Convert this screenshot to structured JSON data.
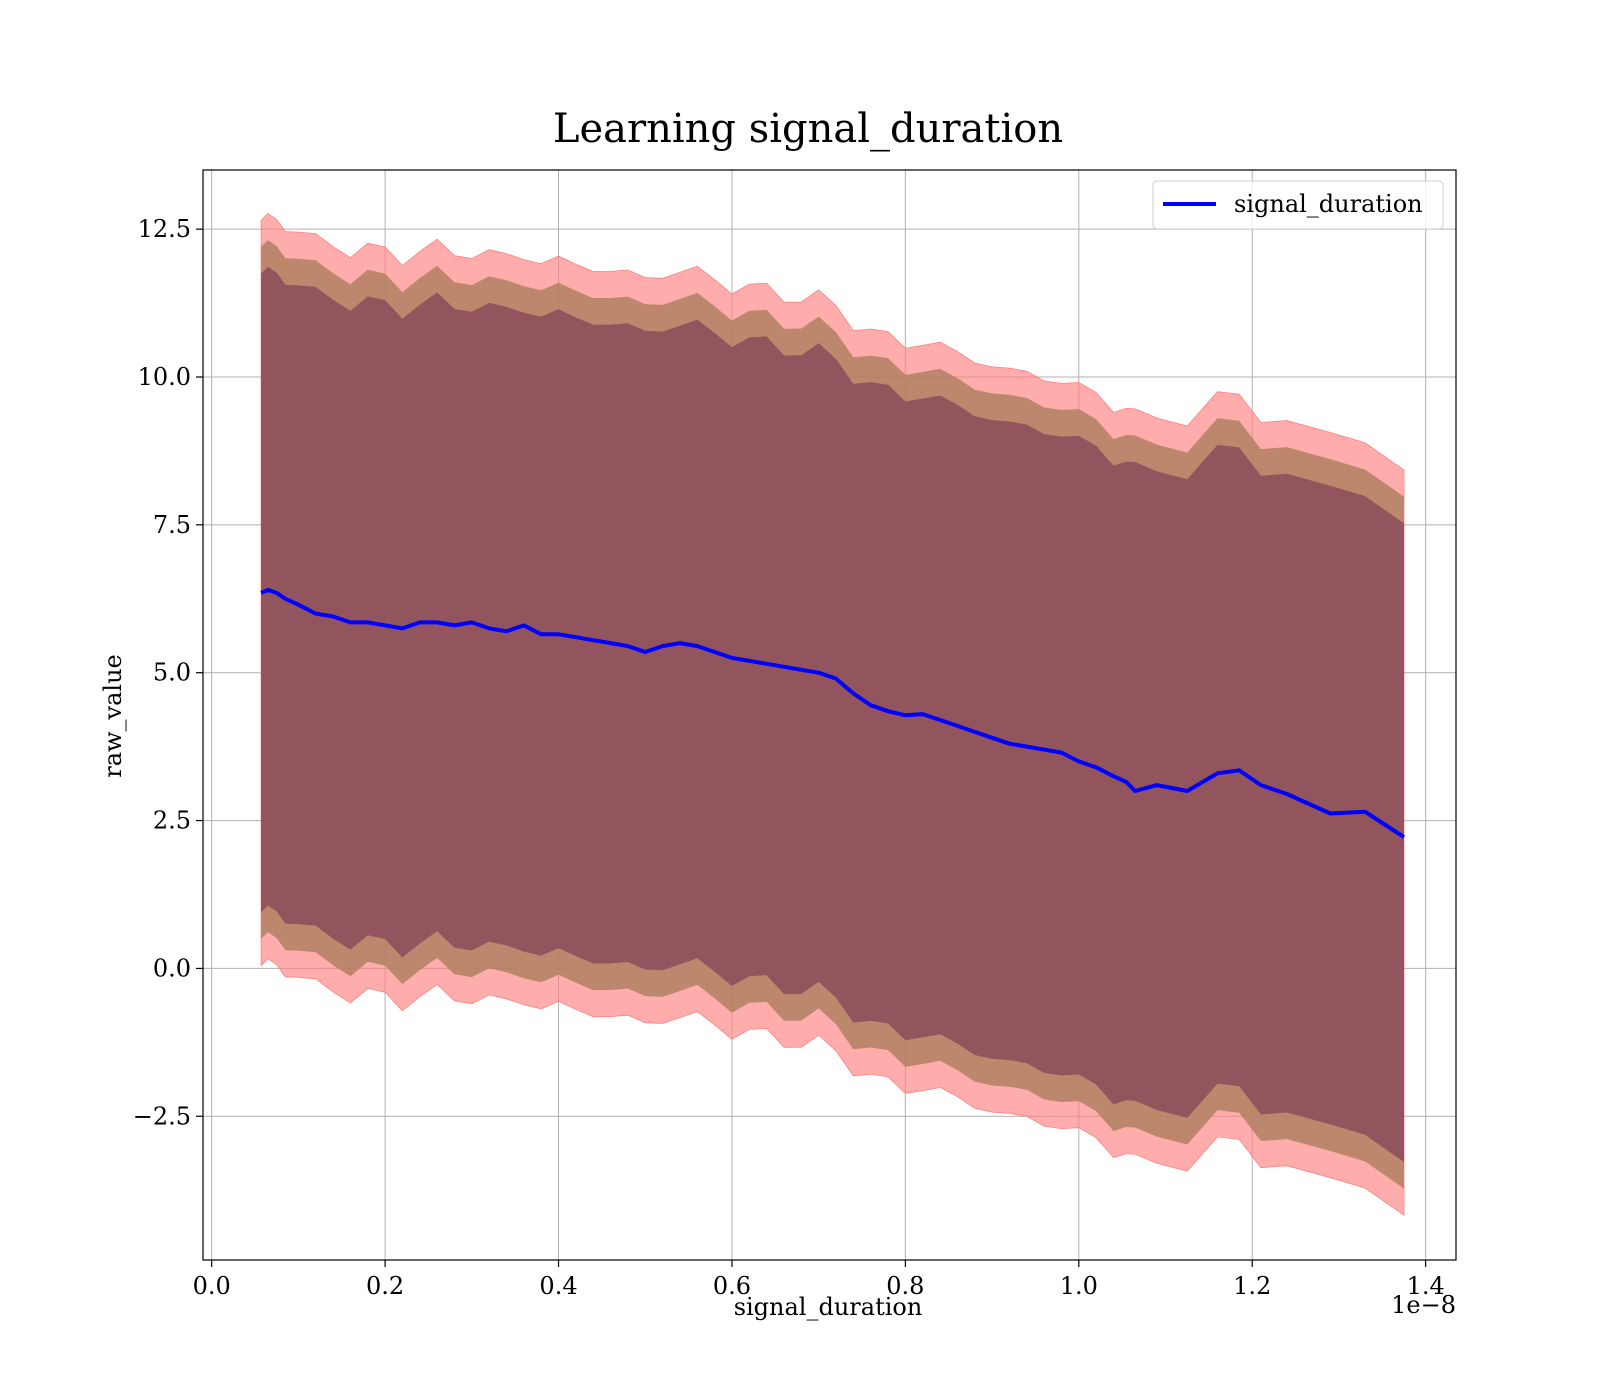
{
  "chart_data": {
    "type": "line",
    "title": "Learning signal_duration",
    "xlabel": "signal_duration",
    "ylabel": "raw_value",
    "x_offset_text": "1e−8",
    "xlim": [
      -0.01,
      1.435
    ],
    "ylim": [
      -4.93,
      13.5
    ],
    "x_ticks": [
      0.0,
      0.2,
      0.4,
      0.6,
      0.8,
      1.0,
      1.2,
      1.4
    ],
    "x_tick_labels": [
      "0.0",
      "0.2",
      "0.4",
      "0.6",
      "0.8",
      "1.0",
      "1.2",
      "1.4"
    ],
    "y_ticks": [
      -2.5,
      0.0,
      2.5,
      5.0,
      7.5,
      10.0,
      12.5
    ],
    "y_tick_labels": [
      "−2.5",
      "0.0",
      "2.5",
      "5.0",
      "7.5",
      "10.0",
      "12.5"
    ],
    "grid": true,
    "legend": {
      "position": "upper right",
      "entries": [
        "signal_duration"
      ]
    },
    "colors": {
      "line": "#0000ff",
      "band_outer": "#ff8080",
      "band_mid": "#b08060",
      "band_inner": "#8b4c5c"
    },
    "band_half_widths": {
      "outer": 6.3,
      "mid": 5.85,
      "inner": 5.4
    },
    "series": [
      {
        "name": "signal_duration",
        "x": [
          0.057,
          0.065,
          0.075,
          0.085,
          0.1,
          0.12,
          0.14,
          0.16,
          0.18,
          0.2,
          0.22,
          0.24,
          0.26,
          0.28,
          0.3,
          0.32,
          0.34,
          0.36,
          0.38,
          0.4,
          0.42,
          0.44,
          0.46,
          0.48,
          0.5,
          0.52,
          0.54,
          0.56,
          0.58,
          0.6,
          0.62,
          0.64,
          0.66,
          0.68,
          0.7,
          0.72,
          0.74,
          0.76,
          0.78,
          0.8,
          0.82,
          0.84,
          0.86,
          0.88,
          0.9,
          0.92,
          0.94,
          0.96,
          0.98,
          1.0,
          1.02,
          1.04,
          1.055,
          1.065,
          1.09,
          1.125,
          1.16,
          1.185,
          1.21,
          1.24,
          1.29,
          1.33,
          1.375
        ],
        "y": [
          6.35,
          6.4,
          6.35,
          6.25,
          6.15,
          6.0,
          5.95,
          5.85,
          5.85,
          5.8,
          5.75,
          5.85,
          5.85,
          5.8,
          5.85,
          5.75,
          5.7,
          5.8,
          5.65,
          5.65,
          5.6,
          5.55,
          5.5,
          5.45,
          5.35,
          5.45,
          5.5,
          5.45,
          5.35,
          5.25,
          5.2,
          5.15,
          5.1,
          5.05,
          5.0,
          4.9,
          4.65,
          4.45,
          4.35,
          4.28,
          4.3,
          4.2,
          4.1,
          4.0,
          3.9,
          3.8,
          3.75,
          3.7,
          3.65,
          3.5,
          3.4,
          3.25,
          3.15,
          3.0,
          3.1,
          3.0,
          3.3,
          3.35,
          3.1,
          2.95,
          2.62,
          2.65,
          2.22
        ]
      }
    ]
  }
}
